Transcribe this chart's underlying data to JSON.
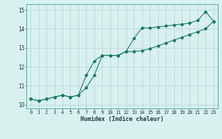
{
  "xlabel": "Humidex (Indice chaleur)",
  "line1_x": [
    0,
    1,
    2,
    3,
    4,
    5,
    6,
    7,
    8,
    9,
    10,
    11,
    12,
    13,
    14,
    15,
    16,
    17,
    18,
    19,
    20,
    21,
    22,
    23
  ],
  "line1_y": [
    10.3,
    10.2,
    10.3,
    10.4,
    10.5,
    10.4,
    10.5,
    10.9,
    11.55,
    12.6,
    12.6,
    12.6,
    12.8,
    13.5,
    14.05,
    14.05,
    14.1,
    14.15,
    14.2,
    14.25,
    14.3,
    14.45,
    14.9,
    14.4
  ],
  "line2_x": [
    0,
    1,
    2,
    3,
    4,
    5,
    6,
    7,
    8,
    9,
    10,
    11,
    12,
    13,
    14,
    15,
    16,
    17,
    18,
    19,
    20,
    21,
    22,
    23
  ],
  "line2_y": [
    10.3,
    10.2,
    10.3,
    10.4,
    10.5,
    10.4,
    10.5,
    11.55,
    12.3,
    12.6,
    12.6,
    12.6,
    12.8,
    12.8,
    12.85,
    12.95,
    13.1,
    13.25,
    13.4,
    13.55,
    13.7,
    13.85,
    14.0,
    14.4
  ],
  "line_color": "#1a7a6e",
  "marker": "D",
  "marker_size": 2.0,
  "bg_color": "#d8f0ee",
  "grid_color": "#b8d8d4",
  "xlim": [
    -0.5,
    23.5
  ],
  "ylim": [
    9.8,
    15.3
  ],
  "yticks": [
    10,
    11,
    12,
    13,
    14,
    15
  ],
  "xticks": [
    0,
    1,
    2,
    3,
    4,
    5,
    6,
    7,
    8,
    9,
    10,
    11,
    12,
    13,
    14,
    15,
    16,
    17,
    18,
    19,
    20,
    21,
    22,
    23
  ]
}
